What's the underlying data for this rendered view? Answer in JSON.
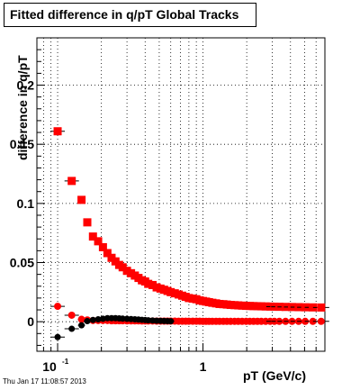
{
  "title": "Fitted difference in q/pT  Global Tracks",
  "timestamp": "Thu Jan 17 11:08:57 2013",
  "colors": {
    "series_red": "#ff0000",
    "series_black": "#000000",
    "grid": "#000000"
  },
  "chart_data": {
    "type": "scatter",
    "title": "Fitted difference in q/pT  Global Tracks",
    "xlabel": "pT (GeV/c)",
    "ylabel": "difference in q/pT",
    "xscale": "log",
    "xlim": [
      0.072,
      6.9
    ],
    "ylim": [
      -0.025,
      0.24
    ],
    "grid": true,
    "x_ticks": [
      {
        "value": 0.1,
        "label": "10",
        "sup": "-1"
      },
      {
        "value": 1,
        "label": "1",
        "sup": ""
      }
    ],
    "y_ticks": [
      {
        "value": 0,
        "label": "0"
      },
      {
        "value": 0.05,
        "label": "0.05"
      },
      {
        "value": 0.1,
        "label": "0.1"
      },
      {
        "value": 0.15,
        "label": "0.15"
      },
      {
        "value": 0.2,
        "label": "0.2"
      }
    ],
    "series": [
      {
        "marker": "square",
        "color": "#ff0000",
        "x": [
          0.1,
          0.125,
          0.146,
          0.16,
          0.175,
          0.19,
          0.205,
          0.22,
          0.235,
          0.25,
          0.265,
          0.28,
          0.3,
          0.32,
          0.34,
          0.36,
          0.38,
          0.4,
          0.42,
          0.45,
          0.48,
          0.51,
          0.54,
          0.57,
          0.6,
          0.64,
          0.68,
          0.72,
          0.76,
          0.8,
          0.85,
          0.9,
          0.95,
          1.0,
          1.05,
          1.1,
          1.16,
          1.23,
          1.3,
          1.38,
          1.46,
          1.55,
          1.65,
          1.75,
          1.86,
          1.98,
          2.1,
          2.23,
          2.37,
          2.52,
          2.7,
          2.9,
          3.1,
          3.35,
          3.7,
          4.1,
          4.55,
          5.05,
          5.7,
          6.5
        ],
        "y": [
          0.161,
          0.119,
          0.103,
          0.084,
          0.072,
          0.068,
          0.063,
          0.058,
          0.054,
          0.051,
          0.048,
          0.046,
          0.043,
          0.041,
          0.039,
          0.037,
          0.035,
          0.034,
          0.032,
          0.031,
          0.029,
          0.028,
          0.027,
          0.026,
          0.025,
          0.024,
          0.023,
          0.022,
          0.021,
          0.02,
          0.0195,
          0.019,
          0.018,
          0.0175,
          0.017,
          0.0165,
          0.016,
          0.0155,
          0.015,
          0.0148,
          0.0145,
          0.0142,
          0.014,
          0.0138,
          0.0136,
          0.0134,
          0.0133,
          0.0132,
          0.0131,
          0.013,
          0.0129,
          0.0128,
          0.0127,
          0.0126,
          0.0125,
          0.0124,
          0.0123,
          0.0122,
          0.0121,
          0.012
        ]
      },
      {
        "marker": "circle",
        "color": "#ff0000",
        "x": [
          0.1,
          0.125,
          0.146,
          0.16,
          0.175,
          0.19,
          0.205,
          0.22,
          0.235,
          0.25,
          0.265,
          0.28,
          0.3,
          0.32,
          0.34,
          0.36,
          0.38,
          0.4,
          0.42,
          0.45,
          0.48,
          0.51,
          0.54,
          0.57,
          0.6,
          0.64,
          0.68,
          0.72,
          0.76,
          0.8,
          0.85,
          0.9,
          0.95,
          1.0,
          1.05,
          1.1,
          1.16,
          1.23,
          1.3,
          1.38,
          1.46,
          1.55,
          1.65,
          1.75,
          1.86,
          1.98,
          2.1,
          2.23,
          2.37,
          2.52,
          2.7,
          2.9,
          3.1,
          3.35,
          3.7,
          4.1,
          4.55,
          5.05,
          5.7,
          6.5
        ],
        "y": [
          0.013,
          0.0055,
          0.002,
          0.0015,
          0.001,
          0.001,
          0.001,
          0.001,
          0.0008,
          0.0008,
          0.0008,
          0.0008,
          0.0007,
          0.0007,
          0.0007,
          0.0007,
          0.0006,
          0.0006,
          0.0006,
          0.0006,
          0.0005,
          0.0005,
          0.0005,
          0.0005,
          0.0005,
          0.0005,
          0.0004,
          0.0004,
          0.0004,
          0.0004,
          0.0004,
          0.0004,
          0.0004,
          0.0003,
          0.0003,
          0.0003,
          0.0003,
          0.0003,
          0.0003,
          0.0003,
          0.0003,
          0.0003,
          0.0003,
          0.0003,
          0.0003,
          0.0003,
          0.0003,
          0.0003,
          0.0003,
          0.0003,
          0.0003,
          0.0003,
          0.0003,
          0.0003,
          0.0003,
          0.0003,
          0.0003,
          0.0003,
          0.0003,
          0.0003
        ]
      },
      {
        "marker": "circle",
        "color": "#000000",
        "x": [
          0.1,
          0.125,
          0.146,
          0.16,
          0.175,
          0.19,
          0.205,
          0.22,
          0.235,
          0.25,
          0.265,
          0.28,
          0.3,
          0.32,
          0.34,
          0.36,
          0.38,
          0.4,
          0.42,
          0.45,
          0.48,
          0.51,
          0.54,
          0.57,
          0.6
        ],
        "y": [
          -0.013,
          -0.006,
          -0.003,
          0.0005,
          0.0015,
          0.002,
          0.0025,
          0.003,
          0.003,
          0.003,
          0.0028,
          0.0026,
          0.0024,
          0.0022,
          0.002,
          0.0018,
          0.0016,
          0.0014,
          0.0012,
          0.001,
          0.0008,
          0.0007,
          0.0006,
          0.0005,
          0.0004
        ]
      }
    ]
  }
}
